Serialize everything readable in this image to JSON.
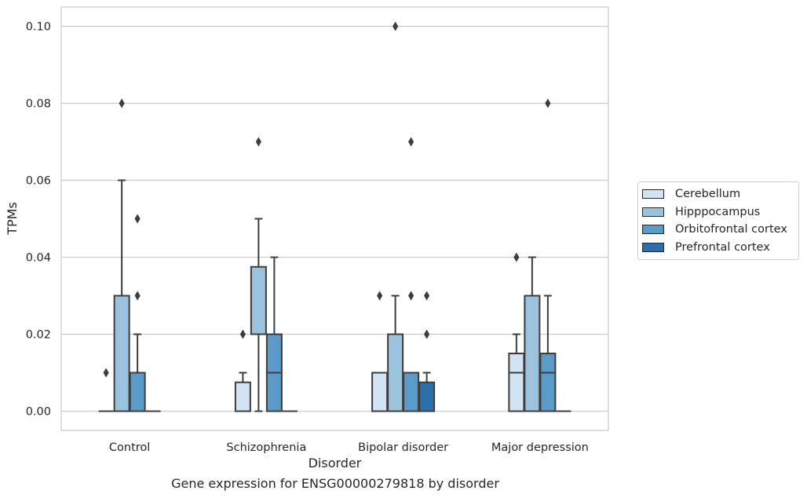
{
  "chart_data": {
    "type": "box",
    "xlabel": "Disorder",
    "ylabel": "TPMs",
    "ylim": [
      -0.005,
      0.105
    ],
    "yticks": [
      0.0,
      0.02,
      0.04,
      0.06,
      0.08,
      0.1
    ],
    "ytick_labels": [
      "0.00",
      "0.02",
      "0.04",
      "0.06",
      "0.08",
      "0.10"
    ],
    "grid": "horizontal",
    "legend_position": "right",
    "categories": [
      "Control",
      "Schizophrenia",
      "Bipolar disorder",
      "Major depression"
    ],
    "series": [
      {
        "name": "Cerebellum",
        "color": "#d2e3f3",
        "boxes": [
          {
            "q1": 0.0,
            "median": 0.0,
            "q3": 0.0,
            "whislo": 0.0,
            "whishi": 0.0,
            "fliers": [
              0.01
            ]
          },
          {
            "q1": 0.0,
            "median": 0.0,
            "q3": 0.0075,
            "whislo": 0.0,
            "whishi": 0.01,
            "fliers": [
              0.02
            ]
          },
          {
            "q1": 0.0,
            "median": 0.0,
            "q3": 0.01,
            "whislo": 0.0,
            "whishi": 0.01,
            "fliers": [
              0.03
            ]
          },
          {
            "q1": 0.0,
            "median": 0.01,
            "q3": 0.015,
            "whislo": 0.0,
            "whishi": 0.02,
            "fliers": [
              0.04
            ]
          }
        ]
      },
      {
        "name": "Hipppocampus",
        "color": "#9ac2dc",
        "boxes": [
          {
            "q1": 0.0,
            "median": 0.0,
            "q3": 0.03,
            "whislo": 0.0,
            "whishi": 0.06,
            "fliers": [
              0.08
            ]
          },
          {
            "q1": 0.02,
            "median": 0.02,
            "q3": 0.0375,
            "whislo": 0.0,
            "whishi": 0.05,
            "fliers": [
              0.07
            ]
          },
          {
            "q1": 0.0,
            "median": 0.0,
            "q3": 0.02,
            "whislo": 0.0,
            "whishi": 0.03,
            "fliers": [
              0.1
            ]
          },
          {
            "q1": 0.0,
            "median": 0.0,
            "q3": 0.03,
            "whislo": 0.0,
            "whishi": 0.04,
            "fliers": []
          }
        ]
      },
      {
        "name": "Orbitofrontal cortex",
        "color": "#5a9ac6",
        "boxes": [
          {
            "q1": 0.0,
            "median": 0.0,
            "q3": 0.01,
            "whislo": 0.0,
            "whishi": 0.02,
            "fliers": [
              0.03,
              0.05
            ]
          },
          {
            "q1": 0.0,
            "median": 0.01,
            "q3": 0.02,
            "whislo": 0.0,
            "whishi": 0.04,
            "fliers": []
          },
          {
            "q1": 0.0,
            "median": 0.0,
            "q3": 0.01,
            "whislo": 0.0,
            "whishi": 0.01,
            "fliers": [
              0.03,
              0.07
            ]
          },
          {
            "q1": 0.0,
            "median": 0.01,
            "q3": 0.015,
            "whislo": 0.0,
            "whishi": 0.03,
            "fliers": [
              0.08
            ]
          }
        ]
      },
      {
        "name": "Prefrontal cortex",
        "color": "#2c6fa9",
        "boxes": [
          {
            "q1": 0.0,
            "median": 0.0,
            "q3": 0.0,
            "whislo": 0.0,
            "whishi": 0.0,
            "fliers": []
          },
          {
            "q1": 0.0,
            "median": 0.0,
            "q3": 0.0,
            "whislo": 0.0,
            "whishi": 0.0,
            "fliers": []
          },
          {
            "q1": 0.0,
            "median": 0.0,
            "q3": 0.0075,
            "whislo": 0.0,
            "whishi": 0.01,
            "fliers": [
              0.02,
              0.03
            ]
          },
          {
            "q1": 0.0,
            "median": 0.0,
            "q3": 0.0,
            "whislo": 0.0,
            "whishi": 0.0,
            "fliers": []
          }
        ]
      }
    ]
  },
  "caption": "Gene expression for ENSG00000279818 by disorder"
}
